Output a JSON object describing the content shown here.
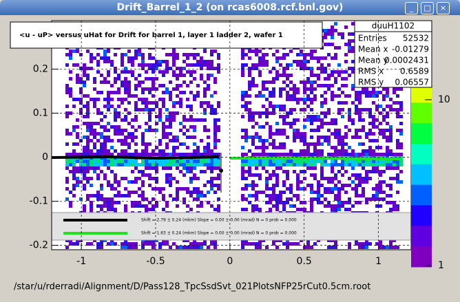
{
  "window": {
    "title": "Drift_Barrel_1_2 (on rcas6008.rcf.bnl.gov)"
  },
  "plot": {
    "title": "<u - uP>      versus  uHat for Drift for barrel 1, layer 1 ladder 2, wafer 1",
    "xlim": [
      -1.2,
      1.22
    ],
    "xticks": [
      -1,
      -0.5,
      0,
      0.5,
      1
    ],
    "ylim": [
      -0.21,
      0.31
    ],
    "yticks": [
      -0.2,
      -0.1,
      0,
      0.1,
      0.2
    ],
    "zlim": [
      0.98,
      30
    ],
    "zticks": [
      10,
      1
    ],
    "zscale": "log"
  },
  "stats": {
    "name": "duuH1102",
    "rows": [
      [
        "Entries",
        "52532"
      ],
      [
        "Mean x",
        "-0.01279"
      ],
      [
        "Mean y",
        "0.0002431"
      ],
      [
        "RMS x",
        "0.6589"
      ],
      [
        "RMS y",
        "0.06557"
      ]
    ]
  },
  "legend": [
    "Shift =    2.79 ± 0.24 (mkm) Slope =    0.00 ± 0.00 (mrad) N = 0 prob = 0.000",
    "Shift =    1.63 ± 0.24 (mkm) Slope =    0.00 ± 0.00 (mrad) N = 0 prob = 0.000"
  ],
  "footer": "/star/u/rderradi/Alignment/D/Pass128_TpcSsdSvt_021PlotsNFP25rCut0.5cm.root"
}
